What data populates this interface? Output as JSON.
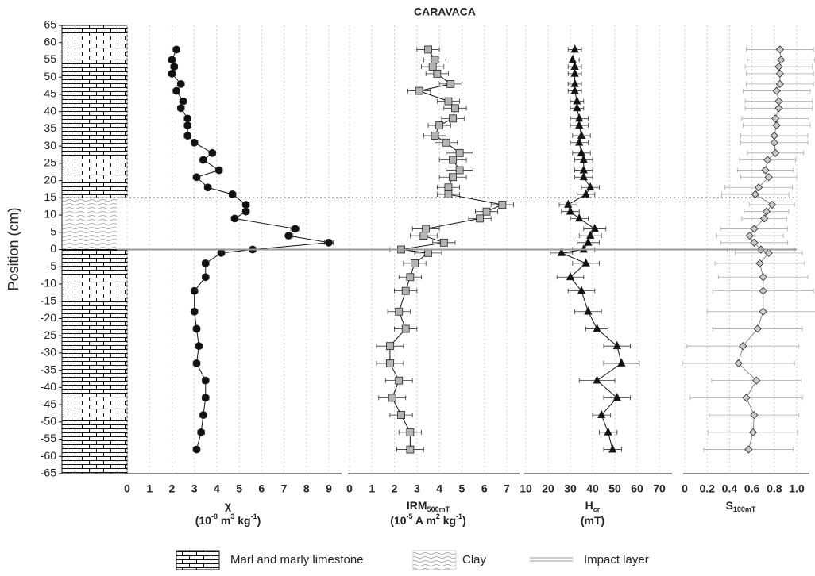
{
  "chart_data": {
    "type": "profile",
    "title": "CARAVACA",
    "ylabel": "Position (cm)",
    "ylim": [
      -65,
      65
    ],
    "yticks": [
      -65,
      -60,
      -55,
      -50,
      -45,
      -40,
      -35,
      -30,
      -25,
      -20,
      -15,
      -10,
      -5,
      0,
      5,
      10,
      15,
      20,
      25,
      30,
      35,
      40,
      45,
      50,
      55,
      60,
      65
    ],
    "grid": true,
    "units": [
      {
        "type": "marl",
        "top": 65,
        "base": 15
      },
      {
        "type": "clay",
        "top": 15,
        "base": 0
      },
      {
        "type": "marl",
        "top": 0,
        "base": -65
      }
    ],
    "impact_level": 0,
    "clay_top": 15,
    "positions": [
      58,
      55,
      53,
      51,
      48,
      46,
      43,
      41,
      38,
      36,
      33,
      31,
      28,
      26,
      23,
      21,
      18,
      16,
      13,
      11,
      9,
      6,
      4,
      2,
      0,
      -1,
      -4,
      -8,
      -12,
      -18,
      -23,
      -28,
      -33,
      -38,
      -43,
      -48,
      -53,
      -58
    ],
    "panels": [
      {
        "label": [
          [
            {
              "text": "χ"
            }
          ],
          [
            {
              "text": "(10"
            },
            {
              "text": "-8",
              "script": "sup"
            },
            {
              "text": " m"
            },
            {
              "text": "3",
              "script": "sup"
            },
            {
              "text": " kg"
            },
            {
              "text": "-1",
              "script": "sup"
            },
            {
              "text": ")"
            }
          ]
        ],
        "xlim": [
          0,
          9
        ],
        "xticks": [
          0,
          1,
          2,
          3,
          4,
          5,
          6,
          7,
          8,
          9
        ],
        "marker": "circle",
        "color": "#111111",
        "line_color": "#111111",
        "values": [
          2.2,
          2.0,
          2.1,
          2.0,
          2.4,
          2.2,
          2.5,
          2.4,
          2.7,
          2.7,
          2.7,
          3.0,
          3.8,
          3.4,
          4.1,
          3.1,
          3.6,
          4.7,
          5.3,
          5.3,
          4.8,
          7.5,
          7.2,
          9.0,
          5.6,
          4.2,
          3.5,
          3.5,
          3.0,
          3.0,
          3.1,
          3.2,
          3.1,
          3.5,
          3.5,
          3.4,
          3.3,
          3.1
        ],
        "errors": [
          0.15,
          0.15,
          0.15,
          0.15,
          0.15,
          0.15,
          0.15,
          0.15,
          0.15,
          0.15,
          0.15,
          0.15,
          0.15,
          0.15,
          0.15,
          0.15,
          0.15,
          0.15,
          0.15,
          0.15,
          0.15,
          0.2,
          0.2,
          0.2,
          0.15,
          0.15,
          0.15,
          0.15,
          0.15,
          0.15,
          0.15,
          0.15,
          0.15,
          0.15,
          0.15,
          0.15,
          0.15,
          0.15
        ]
      },
      {
        "label": [
          [
            {
              "text": "IRM"
            },
            {
              "text": "500mT",
              "script": "sub"
            }
          ],
          [
            {
              "text": "(10"
            },
            {
              "text": "-5",
              "script": "sup"
            },
            {
              "text": " A m"
            },
            {
              "text": "2",
              "script": "sup"
            },
            {
              "text": " kg"
            },
            {
              "text": "-1",
              "script": "sup"
            },
            {
              "text": ")"
            }
          ]
        ],
        "xlim": [
          0,
          7
        ],
        "xticks": [
          0,
          1,
          2,
          3,
          4,
          5,
          6,
          7
        ],
        "marker": "square",
        "color": "#b4b4b4",
        "line_color": "#111111",
        "values": [
          3.5,
          3.8,
          3.7,
          3.9,
          4.5,
          3.1,
          4.4,
          4.7,
          4.6,
          4.0,
          3.8,
          4.3,
          4.9,
          4.6,
          4.9,
          4.6,
          4.4,
          4.4,
          6.8,
          6.1,
          5.8,
          3.4,
          3.3,
          4.2,
          2.3,
          3.5,
          2.9,
          2.7,
          2.5,
          2.2,
          2.5,
          1.8,
          1.8,
          2.2,
          1.9,
          2.3,
          2.7,
          2.7
        ],
        "errors": [
          0.5,
          0.5,
          0.5,
          0.5,
          0.5,
          0.5,
          0.5,
          0.5,
          0.5,
          0.5,
          0.5,
          0.5,
          0.6,
          0.6,
          0.6,
          0.6,
          0.5,
          0.5,
          0.5,
          0.5,
          0.5,
          0.6,
          0.6,
          0.5,
          0.5,
          0.6,
          0.5,
          0.5,
          0.5,
          0.5,
          0.5,
          0.6,
          0.6,
          0.6,
          0.6,
          0.5,
          0.5,
          0.6
        ]
      },
      {
        "label": [
          [
            {
              "text": "H"
            },
            {
              "text": "cr",
              "script": "sub"
            }
          ],
          [
            {
              "text": "(mT)"
            }
          ]
        ],
        "xlim": [
          10,
          70
        ],
        "xticks": [
          10,
          20,
          30,
          40,
          50,
          60,
          70
        ],
        "marker": "triangle",
        "color": "#111111",
        "line_color": "#111111",
        "values": [
          32,
          31,
          32,
          32,
          32,
          32,
          33,
          33,
          34,
          34,
          35,
          34,
          35,
          36,
          36,
          36,
          39,
          37,
          29,
          30,
          34,
          41,
          39,
          38,
          36,
          26,
          37,
          30,
          35,
          38,
          42,
          51,
          53,
          42,
          51,
          44,
          47,
          49
        ],
        "errors": [
          3,
          3,
          3,
          3,
          3,
          3,
          3,
          3,
          4,
          4,
          4,
          4,
          4,
          4,
          4,
          4,
          4,
          4,
          4,
          4,
          4,
          5,
          5,
          5,
          5,
          5,
          6,
          6,
          6,
          6,
          5,
          6,
          8,
          8,
          6,
          4,
          4,
          4
        ]
      },
      {
        "label": [
          [
            {
              "text": "S"
            },
            {
              "text": "100mT",
              "script": "sub"
            }
          ]
        ],
        "xlim": [
          0,
          1
        ],
        "xticks": [
          0,
          0.2,
          0.4,
          0.6,
          0.8,
          {
            "value": 1,
            "label": "1.0"
          }
        ],
        "marker": "diamond",
        "color": "#c8c8c8",
        "line_color": "#888888",
        "values": [
          0.85,
          0.86,
          0.84,
          0.85,
          0.85,
          0.82,
          0.84,
          0.84,
          0.81,
          0.82,
          0.8,
          0.8,
          0.81,
          0.74,
          0.72,
          0.75,
          0.66,
          0.63,
          0.78,
          0.73,
          0.71,
          0.62,
          0.58,
          0.62,
          0.68,
          0.75,
          0.67,
          0.7,
          0.7,
          0.7,
          0.65,
          0.52,
          0.48,
          0.64,
          0.55,
          0.62,
          0.61,
          0.57
        ],
        "errors": [
          0.3,
          0.3,
          0.3,
          0.3,
          0.3,
          0.3,
          0.3,
          0.3,
          0.3,
          0.3,
          0.3,
          0.3,
          0.25,
          0.25,
          0.25,
          0.25,
          0.3,
          0.3,
          0.2,
          0.2,
          0.2,
          0.3,
          0.3,
          0.3,
          0.3,
          0.3,
          0.4,
          0.4,
          0.45,
          0.5,
          0.4,
          0.5,
          0.5,
          0.4,
          0.5,
          0.4,
          0.4,
          0.4
        ]
      }
    ],
    "legend": [
      {
        "type": "marl",
        "label": "Marl and marly limestone"
      },
      {
        "type": "clay",
        "label": "Clay"
      },
      {
        "type": "impact",
        "label": "Impact layer"
      }
    ]
  }
}
